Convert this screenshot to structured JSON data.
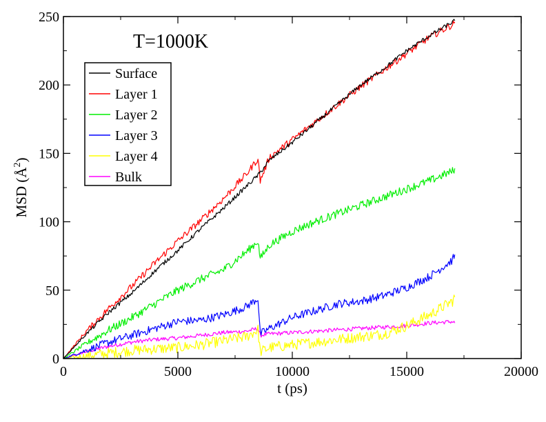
{
  "chart_data": {
    "type": "line",
    "title": "",
    "annotation": "T=1000K",
    "xlabel": "t (ps)",
    "ylabel": {
      "prefix": "MSD (",
      "symbol": "Å",
      "superscript": "2",
      "suffix": ")"
    },
    "xlim": [
      0,
      20000
    ],
    "ylim": [
      0,
      250
    ],
    "xticks": [
      0,
      5000,
      10000,
      15000,
      20000
    ],
    "yticks": [
      0,
      50,
      100,
      150,
      200,
      250
    ],
    "grid": false,
    "legend_position": "top-left",
    "x": [
      0,
      1000,
      2000,
      3000,
      4000,
      5000,
      6000,
      7000,
      8000,
      8500,
      8600,
      9000,
      10000,
      11000,
      12000,
      13000,
      14000,
      15000,
      16000,
      17000,
      17100
    ],
    "series": [
      {
        "name": "Surface",
        "color": "#000000",
        "values": [
          0,
          18,
          34,
          48,
          64,
          79,
          95,
          110,
          126,
          134,
          136,
          145,
          158,
          172,
          186,
          200,
          212,
          225,
          236,
          246,
          247
        ],
        "noise": 1.5
      },
      {
        "name": "Layer 1",
        "color": "#ff0000",
        "values": [
          0,
          20,
          37,
          53,
          70,
          86,
          101,
          117,
          135,
          146,
          130,
          147,
          160,
          173,
          186,
          199,
          211,
          223,
          235,
          244,
          246
        ],
        "noise": 2.5
      },
      {
        "name": "Layer 2",
        "color": "#00ee00",
        "values": [
          0,
          11,
          21,
          30,
          40,
          50,
          58,
          65,
          78,
          86,
          73,
          83,
          93,
          100,
          106,
          112,
          118,
          124,
          130,
          137,
          139
        ],
        "noise": 3
      },
      {
        "name": "Layer 3",
        "color": "#0000ff",
        "values": [
          0,
          6,
          12,
          17,
          22,
          27,
          28,
          32,
          38,
          44,
          18,
          22,
          30,
          35,
          40,
          42,
          46,
          52,
          60,
          72,
          76
        ],
        "noise": 3
      },
      {
        "name": "Layer 4",
        "color": "#ffff00",
        "values": [
          0,
          2,
          4,
          6,
          7,
          8,
          10,
          13,
          16,
          21,
          5,
          8,
          10,
          12,
          14,
          16,
          18,
          24,
          32,
          42,
          45
        ],
        "noise": 4
      },
      {
        "name": "Bulk",
        "color": "#ff00ff",
        "values": [
          0,
          5,
          9,
          12,
          14,
          15,
          17,
          19,
          20,
          22,
          17,
          18,
          19,
          20,
          21,
          22,
          23,
          24,
          26,
          27,
          26
        ],
        "noise": 1.5
      }
    ]
  }
}
